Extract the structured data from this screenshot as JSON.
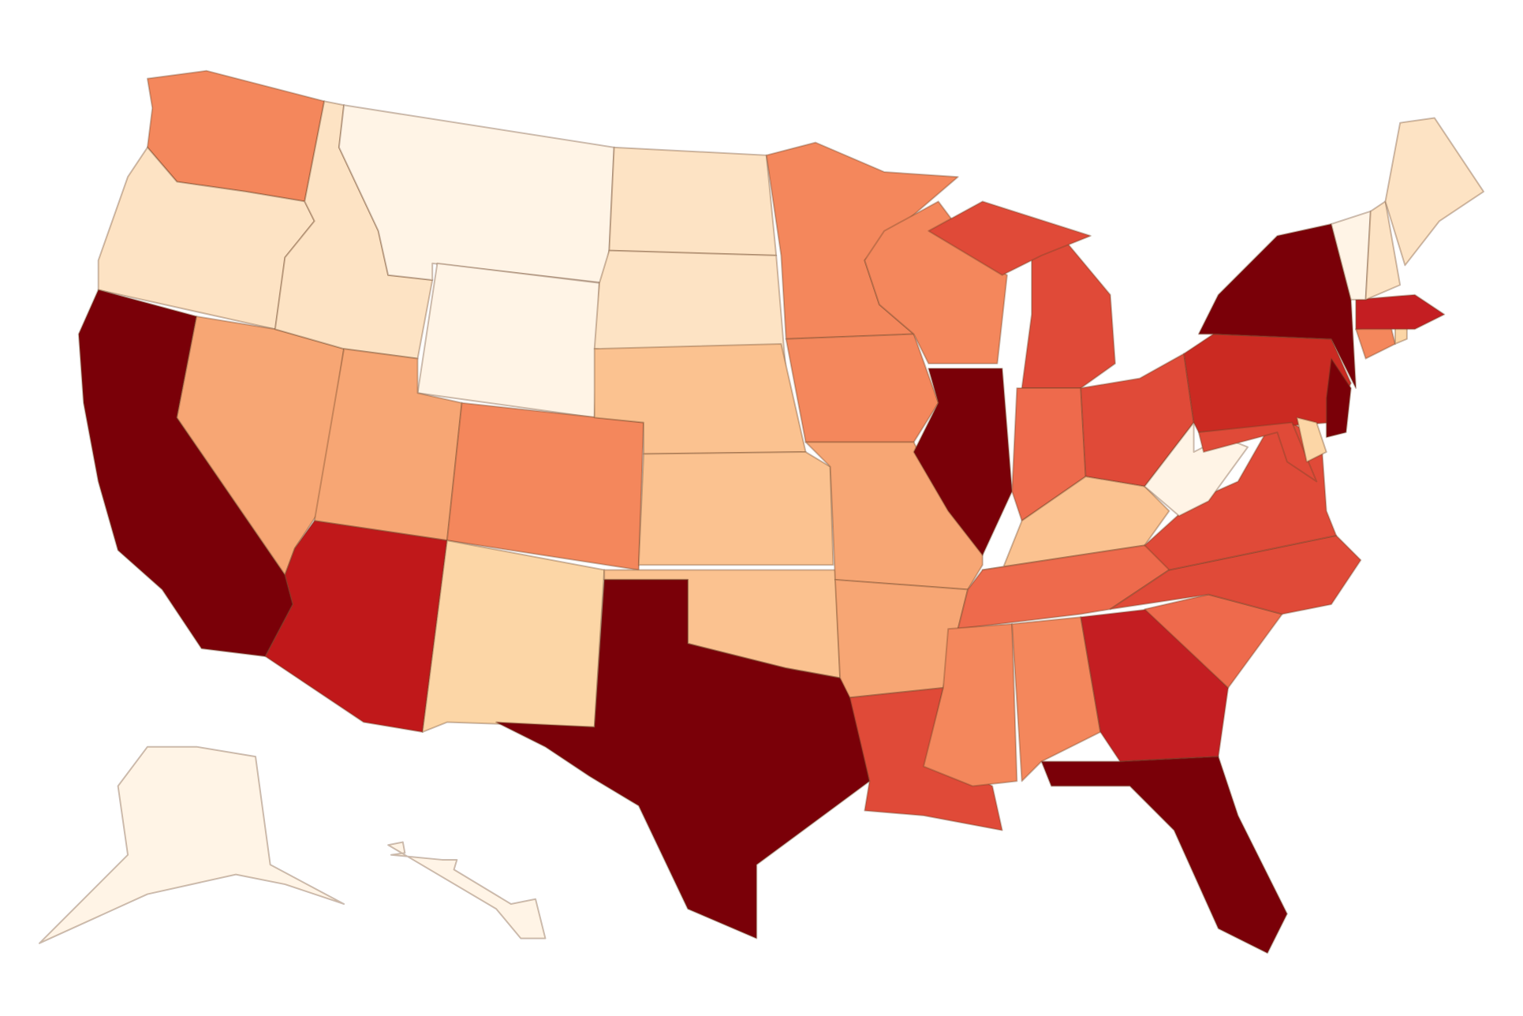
{
  "regions": [
    {
      "color": "#f4875c"
    },
    {
      "color": "#fde3c4"
    },
    {
      "color": "#7a0008"
    },
    {
      "color": "#f7a674"
    },
    {
      "color": "#fde3c4"
    },
    {
      "color": "#fff4e6"
    },
    {
      "color": "#fff4e6"
    },
    {
      "color": "#f7a674"
    },
    {
      "color": "#c0181a"
    },
    {
      "color": "#f4875c"
    },
    {
      "color": "#fcd6a6"
    },
    {
      "color": "#fde3c4"
    },
    {
      "color": "#fde3c4"
    },
    {
      "color": "#fbc290"
    },
    {
      "color": "#fbc290"
    },
    {
      "color": "#fbc290"
    },
    {
      "color": "#7a0008"
    },
    {
      "color": "#f4875c"
    },
    {
      "color": "#f4875c"
    },
    {
      "color": "#f7a674"
    },
    {
      "color": "#f7a674"
    },
    {
      "color": "#e04a38"
    },
    {
      "color": "#f4875c"
    },
    {
      "color": "#7a0008"
    },
    {
      "color": "#e04a38"
    },
    {
      "color": "#e04a38"
    },
    {
      "color": "#ee6a4c"
    },
    {
      "color": "#e04a38"
    },
    {
      "color": "#fbc290"
    },
    {
      "color": "#ee6a4c"
    },
    {
      "color": "#f4875c"
    },
    {
      "color": "#f4875c"
    },
    {
      "color": "#c41e22"
    },
    {
      "color": "#7a0008"
    },
    {
      "color": "#ee6a4c"
    },
    {
      "color": "#e04a38"
    },
    {
      "color": "#e04a38"
    },
    {
      "color": "#fff4e6"
    },
    {
      "color": "#cb2a22"
    },
    {
      "color": "#7a0008"
    },
    {
      "color": "#7a0008"
    },
    {
      "color": "#e04a38"
    },
    {
      "color": "#fcd6a6"
    },
    {
      "color": "#f4875c"
    },
    {
      "color": "#fcd6a6"
    },
    {
      "color": "#c41e22"
    },
    {
      "color": "#fff4e6"
    },
    {
      "color": "#fde3c4"
    },
    {
      "color": "#fde3c4"
    },
    {
      "color": "#fff4e6"
    },
    {
      "color": "#fff4e6"
    }
  ]
}
